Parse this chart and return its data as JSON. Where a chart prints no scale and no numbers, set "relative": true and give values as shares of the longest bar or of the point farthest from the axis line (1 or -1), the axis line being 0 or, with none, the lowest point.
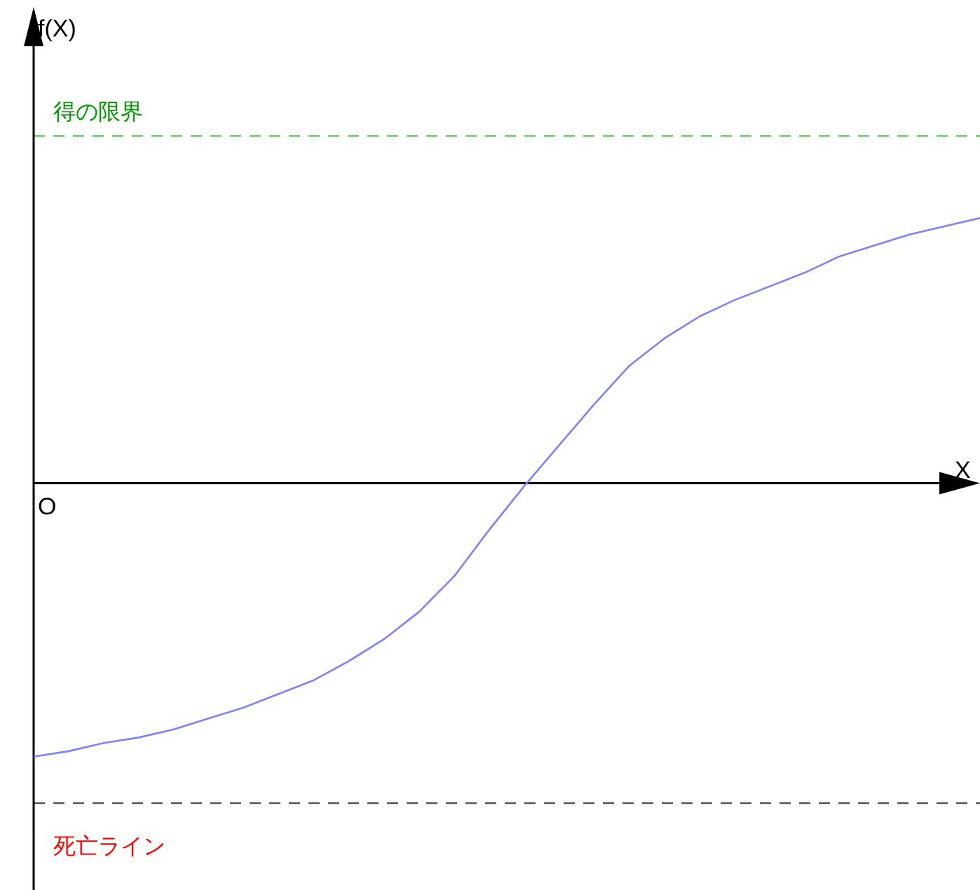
{
  "chart_data": {
    "type": "line",
    "relative": true,
    "xlabel": "X",
    "annotations": [
      "f(X)",
      "O"
    ],
    "categories": [
      null,
      null,
      null,
      null,
      null,
      null,
      null,
      null,
      null,
      null,
      null,
      null,
      null,
      null,
      null,
      null,
      null,
      null,
      null,
      null,
      null,
      null,
      null,
      null,
      null,
      null,
      null,
      null
    ],
    "series": [
      {
        "color": "#8080ff",
        "values": [
          -1.0,
          -0.98,
          -0.95,
          -0.93,
          -0.9,
          -0.86,
          -0.82,
          -0.77,
          -0.72,
          -0.65,
          -0.57,
          -0.47,
          -0.34,
          -0.17,
          -0.01,
          0.14,
          0.29,
          0.43,
          0.53,
          0.61,
          0.67,
          0.72,
          0.77,
          0.83,
          0.87,
          0.91,
          0.94,
          0.97
        ]
      }
    ],
    "ref_lines": [
      {
        "axis": "y",
        "value": 1.27,
        "label": "得の限界",
        "color": "#66cc66",
        "line_style": "dashed"
      },
      {
        "axis": "y",
        "value": -1.17,
        "label": "死亡ライン",
        "color": "#555555",
        "line_style": "dashed"
      }
    ],
    "marker": "none",
    "line_style": "solid"
  }
}
